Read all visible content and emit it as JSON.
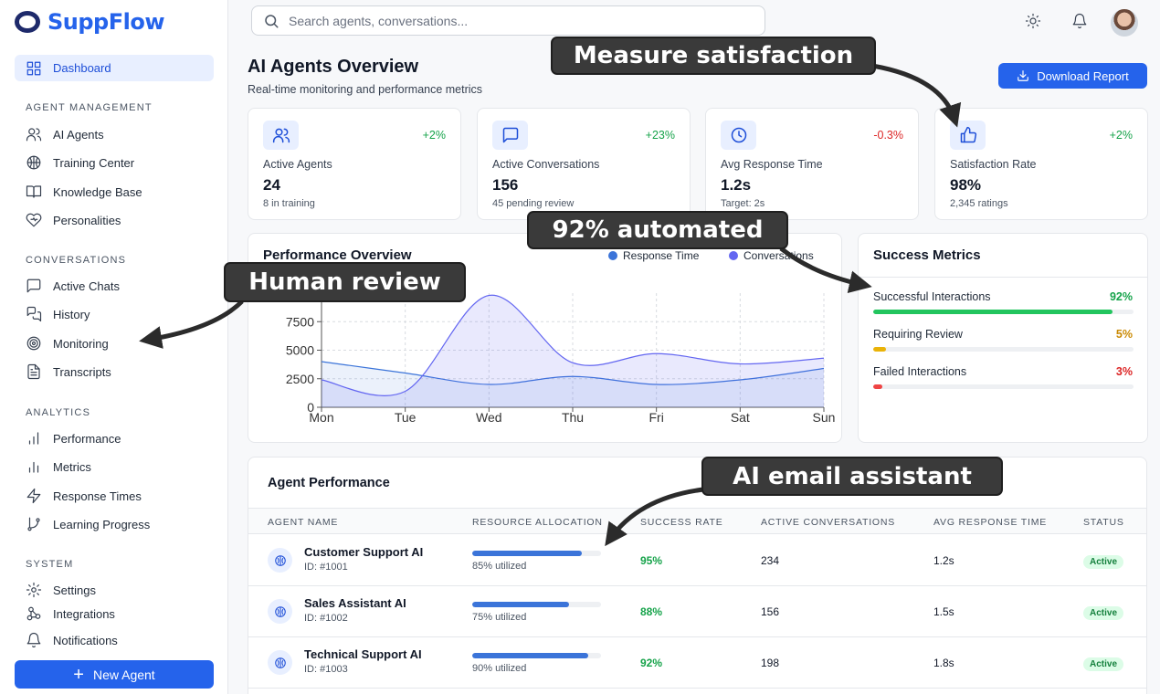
{
  "app": {
    "name": "SuppFlow"
  },
  "sidebar": {
    "active": {
      "label": "Dashboard",
      "icon": "grid-icon"
    },
    "sections": [
      {
        "title": "AGENT MANAGEMENT",
        "items": [
          {
            "label": "AI Agents",
            "icon": "users-icon"
          },
          {
            "label": "Training Center",
            "icon": "brain-icon"
          },
          {
            "label": "Knowledge Base",
            "icon": "book-icon"
          },
          {
            "label": "Personalities",
            "icon": "heart-icon"
          }
        ]
      },
      {
        "title": "CONVERSATIONS",
        "items": [
          {
            "label": "Active Chats",
            "icon": "message-icon"
          },
          {
            "label": "History",
            "icon": "messages-icon"
          },
          {
            "label": "Monitoring",
            "icon": "target-icon"
          },
          {
            "label": "Transcripts",
            "icon": "file-text-icon"
          }
        ]
      },
      {
        "title": "ANALYTICS",
        "items": [
          {
            "label": "Performance",
            "icon": "bar-chart-icon"
          },
          {
            "label": "Metrics",
            "icon": "bar-chart-2-icon"
          },
          {
            "label": "Response Times",
            "icon": "zap-icon"
          },
          {
            "label": "Learning Progress",
            "icon": "git-branch-icon"
          }
        ]
      },
      {
        "title": "SYSTEM",
        "items": [
          {
            "label": "Settings",
            "icon": "gear-icon"
          },
          {
            "label": "Integrations",
            "icon": "integrations-icon"
          },
          {
            "label": "Notifications",
            "icon": "bell-icon"
          }
        ]
      }
    ],
    "new_agent_label": "New Agent"
  },
  "header": {
    "search_placeholder": "Search agents, conversations...",
    "title": "AI Agents Overview",
    "subtitle": "Real-time monitoring and performance metrics",
    "download_label": "Download Report"
  },
  "stats": [
    {
      "label": "Active Agents",
      "value": "24",
      "sub": "8 in training",
      "change": "+2%",
      "change_color": "#16a34a",
      "icon": "users-icon"
    },
    {
      "label": "Active Conversations",
      "value": "156",
      "sub": "45 pending review",
      "change": "+23%",
      "change_color": "#16a34a",
      "icon": "message-icon"
    },
    {
      "label": "Avg Response Time",
      "value": "1.2s",
      "sub": "Target: 2s",
      "change": "-0.3%",
      "change_color": "#dc2626",
      "icon": "clock-icon"
    },
    {
      "label": "Satisfaction Rate",
      "value": "98%",
      "sub": "2,345 ratings",
      "change": "+2%",
      "change_color": "#16a34a",
      "icon": "thumbs-up-icon"
    }
  ],
  "performance": {
    "title": "Performance Overview",
    "legend": [
      {
        "name": "Response Time",
        "color": "#3b74d9"
      },
      {
        "name": "Conversations",
        "color": "#6366f1"
      }
    ]
  },
  "chart_data": {
    "type": "area",
    "title": "Performance Overview",
    "categories": [
      "Mon",
      "Tue",
      "Wed",
      "Thu",
      "Fri",
      "Sat",
      "Sun"
    ],
    "yticks": [
      0,
      2500,
      5000,
      7500
    ],
    "ylim": [
      0,
      10000
    ],
    "grid": true,
    "legend_position": "top-right",
    "series": [
      {
        "name": "Response Time",
        "values": [
          4000,
          3000,
          2000,
          2700,
          2000,
          2400,
          3400
        ],
        "color": "#3b74d9"
      },
      {
        "name": "Conversations",
        "values": [
          2400,
          1400,
          9800,
          3900,
          4700,
          3800,
          4300
        ],
        "color": "#6366f1"
      }
    ]
  },
  "success_metrics": {
    "title": "Success Metrics",
    "items": [
      {
        "label": "Successful Interactions",
        "value": "92%",
        "fraction": 0.92,
        "color": "#22c55e",
        "text_color": "#16a34a"
      },
      {
        "label": "Requiring Review",
        "value": "5%",
        "fraction": 0.05,
        "color": "#eab308",
        "text_color": "#ca8a04"
      },
      {
        "label": "Failed Interactions",
        "value": "3%",
        "fraction": 0.03,
        "color": "#ef4444",
        "text_color": "#dc2626"
      }
    ]
  },
  "agents_table": {
    "title": "Agent Performance",
    "columns": [
      "AGENT NAME",
      "RESOURCE ALLOCATION",
      "SUCCESS RATE",
      "ACTIVE CONVERSATIONS",
      "AVG RESPONSE TIME",
      "STATUS"
    ],
    "rows": [
      {
        "name": "Customer Support AI",
        "id": "ID: #1001",
        "allocation": 0.85,
        "allocation_text": "85% utilized",
        "success": "95%",
        "conversations": "234",
        "response": "1.2s",
        "status": "Active"
      },
      {
        "name": "Sales Assistant AI",
        "id": "ID: #1002",
        "allocation": 0.75,
        "allocation_text": "75% utilized",
        "success": "88%",
        "conversations": "156",
        "response": "1.5s",
        "status": "Active"
      },
      {
        "name": "Technical Support AI",
        "id": "ID: #1003",
        "allocation": 0.9,
        "allocation_text": "90% utilized",
        "success": "92%",
        "conversations": "198",
        "response": "1.8s",
        "status": "Active"
      }
    ]
  },
  "callouts": {
    "satisfaction": "Measure satisfaction",
    "automated": "92% automated",
    "human_review": "Human review",
    "email_assistant": "AI email assistant"
  }
}
